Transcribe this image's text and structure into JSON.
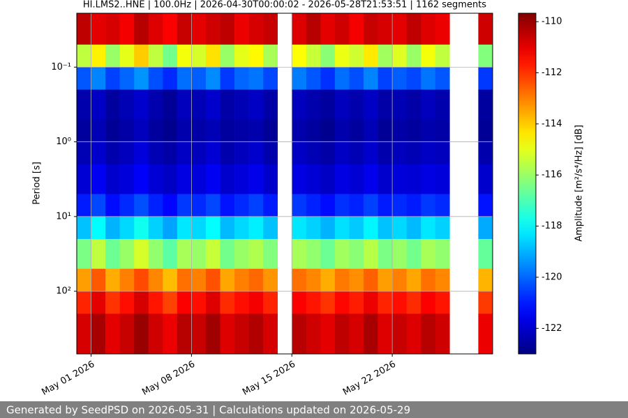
{
  "chart_data": {
    "type": "heatmap",
    "title": "HI.LMS2..HNE | 100.0Hz | 2026-04-30T00:00:02 - 2026-05-28T21:53:51 | 1162 segments",
    "ylabel": "Period [s]",
    "zlabel": "Amplitude [m²/s⁴/Hz] [dB]",
    "colormap": "jet",
    "ylog": true,
    "y_inverted": true,
    "grid": true,
    "xlim": [
      "2026-04-30",
      "2026-05-29"
    ],
    "xticks": [
      {
        "value": "2026-05-01",
        "label": "May 01 2026"
      },
      {
        "value": "2026-05-08",
        "label": "May 08 2026"
      },
      {
        "value": "2026-05-15",
        "label": "May 15 2026"
      },
      {
        "value": "2026-05-22",
        "label": "May 22 2026"
      }
    ],
    "ylim": [
      0.019,
      690
    ],
    "yticks": [
      {
        "value": 0.1,
        "label": "10⁻¹"
      },
      {
        "value": 1,
        "label": "10⁰"
      },
      {
        "value": 10,
        "label": "10¹"
      },
      {
        "value": 100,
        "label": "10²"
      }
    ],
    "zlim": [
      -123,
      -109.67
    ],
    "zticks": [
      -110,
      -112,
      -114,
      -116,
      -118,
      -120,
      -122
    ],
    "x": [
      "2026-04-30",
      "2026-05-01",
      "2026-05-02",
      "2026-05-03",
      "2026-05-04",
      "2026-05-05",
      "2026-05-06",
      "2026-05-07",
      "2026-05-08",
      "2026-05-09",
      "2026-05-10",
      "2026-05-11",
      "2026-05-12",
      "2026-05-13",
      "2026-05-14",
      "2026-05-15",
      "2026-05-16",
      "2026-05-17",
      "2026-05-18",
      "2026-05-19",
      "2026-05-20",
      "2026-05-21",
      "2026-05-22",
      "2026-05-23",
      "2026-05-24",
      "2026-05-25",
      "2026-05-26",
      "2026-05-27",
      "2026-05-28",
      "2026-05-29"
    ],
    "y": [
      0.019,
      0.05,
      0.1,
      0.2,
      0.5,
      1,
      2,
      5,
      10,
      20,
      50,
      100,
      200,
      690
    ],
    "z": [
      [
        -110.5,
        -111,
        -110.8,
        -111.2,
        -110.4,
        -110.9,
        -111.3,
        -110.6,
        -111,
        -110.7,
        -110.5,
        -111.1,
        -110.8,
        -110.6,
        null,
        -110.9,
        -110.4,
        -111,
        -110.7,
        -111.2,
        -110.6,
        -110.8,
        -111,
        -110.5,
        -110.9,
        -111.1,
        null,
        null,
        -110.7
      ],
      [
        -115.5,
        -114.5,
        -116,
        -115,
        -114,
        -115.5,
        -116.5,
        -114.8,
        -115.2,
        -114.3,
        -116,
        -115,
        -114.6,
        -115.8,
        null,
        -114.7,
        -115.4,
        -116.2,
        -114.9,
        -115.3,
        -114.4,
        -115.9,
        -115.1,
        -116,
        -114.8,
        -115.5,
        null,
        null,
        -116.3
      ],
      [
        -120.2,
        -119.6,
        -120.5,
        -120,
        -119.4,
        -120.3,
        -120.8,
        -119.9,
        -120.1,
        -119.5,
        -120.6,
        -120,
        -119.8,
        -120.4,
        null,
        -119.7,
        -120.2,
        -120.7,
        -119.9,
        -120.3,
        -119.6,
        -120.5,
        -120.1,
        -120.4,
        -119.8,
        -120.2,
        null,
        null,
        -120.6
      ],
      [
        -122.4,
        -122.1,
        -122.6,
        -122.3,
        -122,
        -122.4,
        -122.7,
        -122.2,
        -122.3,
        -122,
        -122.5,
        -122.3,
        -122.1,
        -122.5,
        null,
        -122.2,
        -122.4,
        -122.6,
        -122.2,
        -122.4,
        -122.1,
        -122.5,
        -122.3,
        -122.5,
        -122.2,
        -122.4,
        null,
        null,
        -122.6
      ],
      [
        -122.6,
        -122.3,
        -122.7,
        -122.5,
        -122.2,
        -122.6,
        -122.8,
        -122.4,
        -122.5,
        -122.3,
        -122.6,
        -122.5,
        -122.4,
        -122.7,
        null,
        -122.4,
        -122.6,
        -122.8,
        -122.4,
        -122.6,
        -122.3,
        -122.7,
        -122.5,
        -122.6,
        -122.4,
        -122.5,
        null,
        null,
        -122.7
      ],
      [
        -122.3,
        -122,
        -122.4,
        -122.2,
        -121.8,
        -122.3,
        -122.5,
        -122.1,
        -122.2,
        -121.9,
        -122.4,
        -122.2,
        -122,
        -122.4,
        null,
        -122.1,
        -122.3,
        -122.5,
        -122.1,
        -122.3,
        -122,
        -122.4,
        -122.2,
        -122.3,
        -122.1,
        -122.2,
        null,
        null,
        -122.4
      ],
      [
        -121.9,
        -121.5,
        -122,
        -121.8,
        -121.4,
        -121.9,
        -122.1,
        -121.7,
        -121.8,
        -121.5,
        -122,
        -121.8,
        -121.6,
        -122,
        null,
        -121.7,
        -121.9,
        -122.1,
        -121.7,
        -121.9,
        -121.6,
        -122,
        -121.8,
        -121.9,
        -121.7,
        -121.8,
        null,
        null,
        -122
      ],
      [
        -121,
        -120.4,
        -121.2,
        -120.8,
        -120.3,
        -120.9,
        -121.3,
        -120.6,
        -120.8,
        -120.4,
        -121.1,
        -120.8,
        -120.5,
        -121,
        null,
        -120.6,
        -120.9,
        -121.2,
        -120.7,
        -120.9,
        -120.5,
        -121,
        -120.8,
        -121,
        -120.6,
        -120.8,
        null,
        null,
        -121.1
      ],
      [
        -118.8,
        -118,
        -119,
        -118.5,
        -117.8,
        -118.6,
        -119.2,
        -118.3,
        -118.5,
        -118,
        -118.9,
        -118.5,
        -118.2,
        -118.8,
        null,
        -118.3,
        -118.6,
        -119,
        -118.4,
        -118.7,
        -118.1,
        -118.8,
        -118.5,
        -118.9,
        -118.3,
        -118.6,
        null,
        null,
        -119.1
      ],
      [
        -116.4,
        -115.5,
        -116.6,
        -116,
        -115.2,
        -116.1,
        -116.8,
        -115.8,
        -116,
        -115.4,
        -116.5,
        -116,
        -115.7,
        -116.3,
        null,
        -115.8,
        -116.1,
        -116.6,
        -115.9,
        -116.2,
        -115.6,
        -116.4,
        -116,
        -116.5,
        -115.8,
        -116.1,
        null,
        null,
        -116.7
      ],
      [
        -113.4,
        -112.5,
        -113.6,
        -113,
        -112.3,
        -113.1,
        -113.8,
        -112.8,
        -113,
        -112.4,
        -113.5,
        -113,
        -112.7,
        -113.3,
        null,
        -112.8,
        -113.1,
        -113.6,
        -112.9,
        -113.2,
        -112.6,
        -113.4,
        -113,
        -113.5,
        -112.8,
        -113.1,
        null,
        null,
        -113.7
      ],
      [
        -111.8,
        -111,
        -112,
        -111.5,
        -110.8,
        -111.6,
        -112.2,
        -111.3,
        -111.5,
        -110.9,
        -111.9,
        -111.5,
        -111.2,
        -111.8,
        null,
        -111.3,
        -111.6,
        -112,
        -111.4,
        -111.7,
        -111.1,
        -111.8,
        -111.5,
        -111.9,
        -111.3,
        -111.6,
        null,
        null,
        -112.1
      ],
      [
        -110.8,
        -110.2,
        -111,
        -110.6,
        -110,
        -110.7,
        -111.1,
        -110.4,
        -110.6,
        -110.1,
        -110.9,
        -110.6,
        -110.3,
        -110.8,
        null,
        -110.4,
        -110.7,
        -111,
        -110.5,
        -110.8,
        -110.2,
        -110.9,
        -110.6,
        -110.9,
        -110.4,
        -110.7,
        null,
        null,
        -111.1
      ]
    ]
  },
  "footer": "Generated by SeedPSD on 2026-05-31 | Calculations updated on 2026-05-29"
}
